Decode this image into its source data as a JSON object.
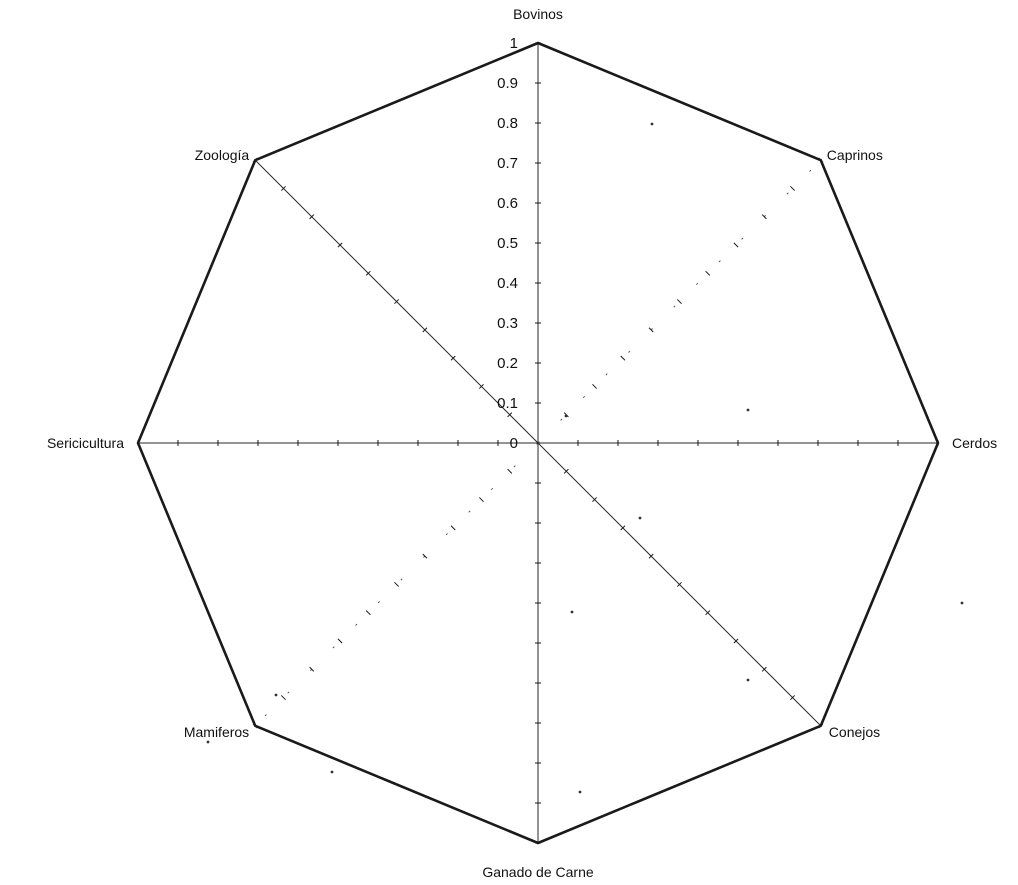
{
  "chart_data": {
    "type": "radar",
    "title": "",
    "categories": [
      "Bovinos",
      "Caprinos",
      "Cerdos",
      "Conejos",
      "Ganado de Carne",
      "Mamiferos",
      "Sericicultura",
      "Zoología"
    ],
    "axis_range": [
      0,
      1
    ],
    "tick_labels": [
      "0",
      "0.1",
      "0.2",
      "0.3",
      "0.4",
      "0.5",
      "0.6",
      "0.7",
      "0.8",
      "0.9",
      "1"
    ],
    "series": [
      {
        "values": [
          1,
          1,
          1,
          1,
          1,
          1,
          1,
          1
        ]
      }
    ],
    "grid": false,
    "legend": "none",
    "colors": {
      "outline": "#1a1a1a",
      "spoke": "#2a2a2a",
      "text": "#111111"
    }
  }
}
